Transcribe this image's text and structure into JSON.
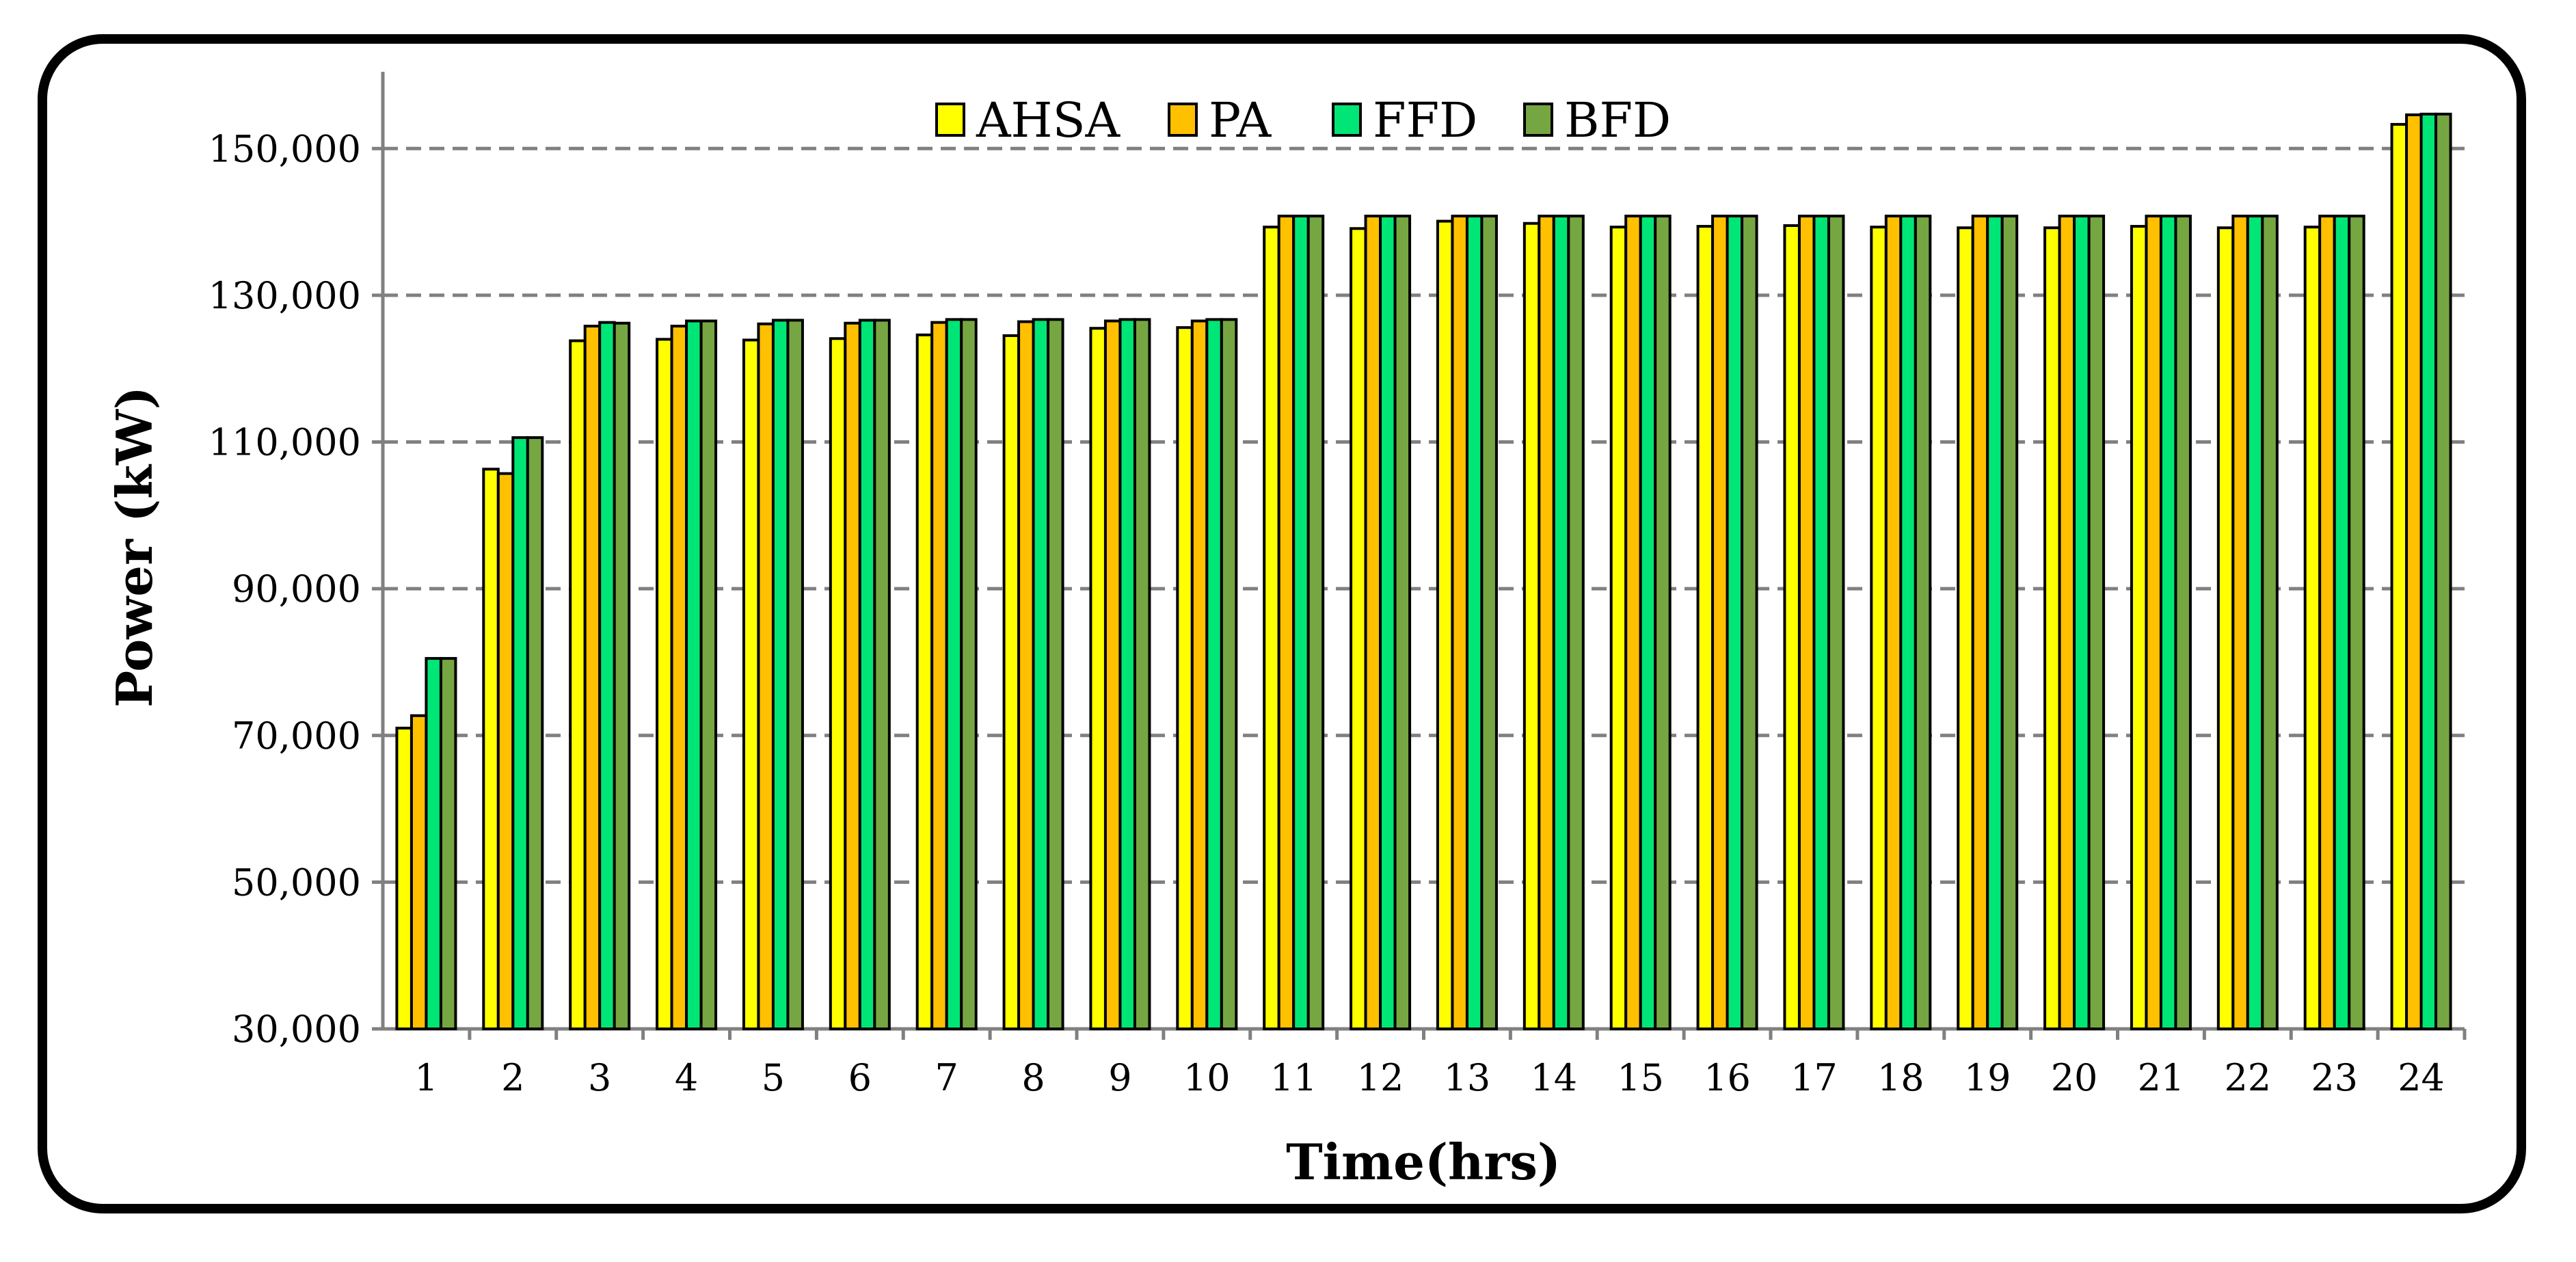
{
  "chart_data": {
    "type": "bar",
    "title": "",
    "xlabel": "Time(hrs)",
    "ylabel": "Power (kW)",
    "ylim": [
      30000,
      160000
    ],
    "yticks": [
      30000,
      50000,
      70000,
      90000,
      110000,
      130000,
      150000
    ],
    "ytick_labels": [
      "30,000",
      "50,000",
      "70,000",
      "90,000",
      "110,000",
      "130,000",
      "150,000"
    ],
    "grid": "horizontal-dashed",
    "legend_position": "top-center",
    "categories": [
      "1",
      "2",
      "3",
      "4",
      "5",
      "6",
      "7",
      "8",
      "9",
      "10",
      "11",
      "12",
      "13",
      "14",
      "15",
      "16",
      "17",
      "18",
      "19",
      "20",
      "21",
      "22",
      "23",
      "24"
    ],
    "series": [
      {
        "name": "AHSA",
        "color": "#ffff00",
        "values": [
          71000,
          106300,
          123800,
          124000,
          123900,
          124100,
          124600,
          124500,
          125500,
          125600,
          139300,
          139100,
          140100,
          139800,
          139300,
          139400,
          139500,
          139300,
          139200,
          139200,
          139400,
          139200,
          139300,
          153300
        ]
      },
      {
        "name": "PA",
        "color": "#ffc000",
        "values": [
          72700,
          105700,
          125800,
          125800,
          126100,
          126200,
          126300,
          126400,
          126500,
          126500,
          140800,
          140800,
          140800,
          140800,
          140800,
          140800,
          140800,
          140800,
          140800,
          140800,
          140800,
          140800,
          140800,
          154600
        ]
      },
      {
        "name": "FFD",
        "color": "#00e676",
        "values": [
          80500,
          110600,
          126300,
          126500,
          126600,
          126600,
          126700,
          126700,
          126700,
          126700,
          140800,
          140800,
          140800,
          140800,
          140800,
          140800,
          140800,
          140800,
          140800,
          140800,
          140800,
          140800,
          140800,
          154700
        ]
      },
      {
        "name": "BFD",
        "color": "#76a642",
        "values": [
          80500,
          110600,
          126200,
          126500,
          126600,
          126600,
          126700,
          126700,
          126700,
          126700,
          140800,
          140800,
          140800,
          140800,
          140800,
          140800,
          140800,
          140800,
          140800,
          140800,
          140800,
          140800,
          140800,
          154700
        ]
      }
    ]
  }
}
